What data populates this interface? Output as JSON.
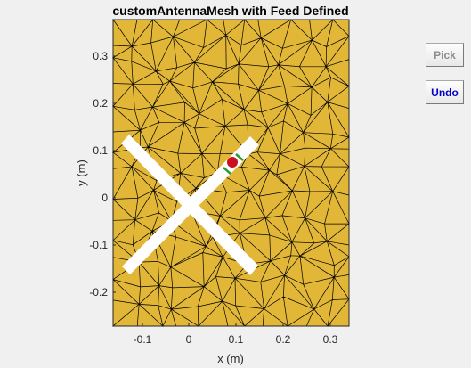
{
  "title": "customAntennaMesh with Feed Defined",
  "xlabel": "x (m)",
  "ylabel": "y (m)",
  "xticks": [
    "-0.1",
    "0",
    "0.1",
    "0.2",
    "0.3"
  ],
  "yticks": [
    "0.3",
    "0.2",
    "0.1",
    "0",
    "-0.1",
    "-0.2"
  ],
  "buttons": {
    "pick_label": "Pick",
    "undo_label": "Undo"
  },
  "colors": {
    "mesh_fill": "#e2b737",
    "mesh_edge": "#000000",
    "feed_marker": "#cc1020",
    "feed_edge": "#2e9b3a",
    "antenna": "#ffffff"
  }
}
